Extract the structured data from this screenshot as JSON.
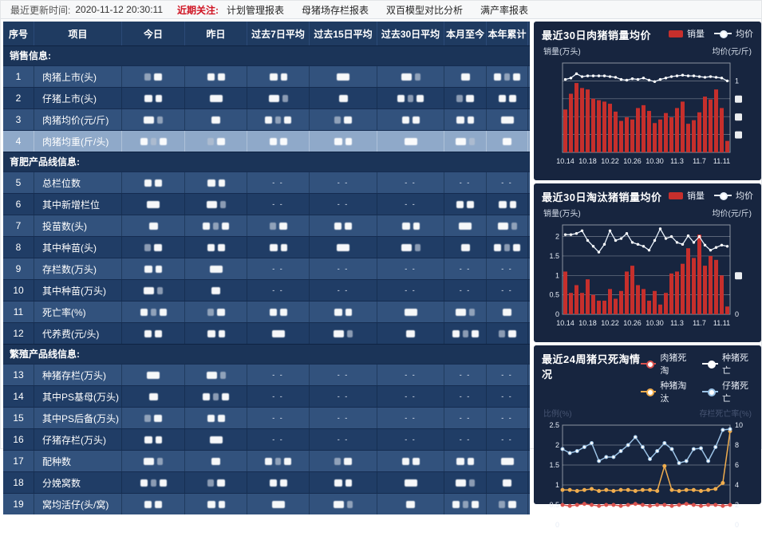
{
  "topbar": {
    "update_label": "最近更新时间:",
    "update_time": "2020-11-12 20:30:11",
    "focus_label": "近期关注:",
    "links": [
      "计划管理报表",
      "母猪场存栏报表",
      "双百模型对比分析",
      "满产率报表"
    ]
  },
  "colors": {
    "bar_red": "#c62f2c",
    "line_white": "#e8f1fb",
    "panel_bg": "#17253f",
    "header_navy": "#1f3b61",
    "row_light": "#32527d",
    "row_dark": "#203d66",
    "selected_row": "#8fa9c9",
    "focus_red": "#cf1322",
    "series_red": "#d9534f",
    "series_white": "#ffffff",
    "series_yellow": "#f0ad4e",
    "series_blue": "#9cc3e6"
  },
  "table": {
    "columns": [
      "序号",
      "项目",
      "今日",
      "昨日",
      "过去7日平均",
      "过去15日平均",
      "过去30日平均",
      "本月至今",
      "本年累计"
    ],
    "groups": [
      {
        "title": "销售信息:",
        "rows": [
          {
            "no": "1",
            "name": "肉猪上市(头)",
            "cells": [
              "R",
              "R",
              "R",
              "R",
              "R",
              "R",
              "R"
            ]
          },
          {
            "no": "2",
            "name": "仔猪上市(头)",
            "cells": [
              "R",
              "R",
              "R",
              "R",
              "R",
              "R",
              "R"
            ]
          },
          {
            "no": "3",
            "name": "肉猪均价(元/斤)",
            "cells": [
              "R",
              "R",
              "R",
              "R",
              "R",
              "R",
              "R"
            ]
          },
          {
            "no": "4",
            "name": "肉猪均重(斤/头)",
            "cells": [
              "R",
              "R",
              "R",
              "R",
              "R",
              "R",
              "R"
            ],
            "selected": true
          }
        ]
      },
      {
        "title": "育肥产品线信息:",
        "rows": [
          {
            "no": "5",
            "name": "总栏位数",
            "cells": [
              "R",
              "R",
              "--",
              "--",
              "--",
              "--",
              "--"
            ]
          },
          {
            "no": "6",
            "name": "其中新增栏位",
            "cells": [
              "R",
              "R",
              "--",
              "--",
              "--",
              "R",
              "R"
            ]
          },
          {
            "no": "7",
            "name": "投苗数(头)",
            "cells": [
              "R",
              "R",
              "R",
              "R",
              "R",
              "R",
              "R"
            ]
          },
          {
            "no": "8",
            "name": "其中种苗(头)",
            "cells": [
              "R",
              "R",
              "R",
              "R",
              "R",
              "R",
              "R"
            ]
          },
          {
            "no": "9",
            "name": "存栏数(万头)",
            "cells": [
              "R",
              "R",
              "--",
              "--",
              "--",
              "--",
              "--"
            ]
          },
          {
            "no": "10",
            "name": "其中种苗(万头)",
            "cells": [
              "R",
              "R",
              "--",
              "--",
              "--",
              "--",
              "--"
            ]
          },
          {
            "no": "11",
            "name": "死亡率(%)",
            "cells": [
              "R",
              "R",
              "R",
              "R",
              "R",
              "R",
              "R"
            ]
          },
          {
            "no": "12",
            "name": "代养费(元/头)",
            "cells": [
              "R",
              "R",
              "R",
              "R",
              "R",
              "R",
              "R"
            ]
          }
        ]
      },
      {
        "title": "繁殖产品线信息:",
        "rows": [
          {
            "no": "13",
            "name": "种猪存栏(万头)",
            "cells": [
              "R",
              "R",
              "--",
              "--",
              "--",
              "--",
              "--"
            ]
          },
          {
            "no": "14",
            "name": "其中PS基母(万头)",
            "cells": [
              "R",
              "R",
              "--",
              "--",
              "--",
              "--",
              "--"
            ]
          },
          {
            "no": "15",
            "name": "其中PS后备(万头)",
            "cells": [
              "R",
              "R",
              "--",
              "--",
              "--",
              "--",
              "--"
            ]
          },
          {
            "no": "16",
            "name": "仔猪存栏(万头)",
            "cells": [
              "R",
              "R",
              "--",
              "--",
              "--",
              "--",
              "--"
            ]
          },
          {
            "no": "17",
            "name": "配种数",
            "cells": [
              "R",
              "R",
              "R",
              "R",
              "R",
              "R",
              "R"
            ]
          },
          {
            "no": "18",
            "name": "分娩窝数",
            "cells": [
              "R",
              "R",
              "R",
              "R",
              "R",
              "R",
              "R"
            ]
          },
          {
            "no": "19",
            "name": "窝均活仔(头/窝)",
            "cells": [
              "R",
              "R",
              "R",
              "R",
              "R",
              "R",
              "R"
            ]
          }
        ]
      }
    ]
  },
  "chart_data": [
    {
      "type": "bar+line",
      "title": "最近30日肉猪销量均价",
      "legend": [
        {
          "label": "销量",
          "type": "bar",
          "color": "#c62f2c"
        },
        {
          "label": "均价",
          "type": "line",
          "color": "#e8f1fb"
        }
      ],
      "ylabel_left": "销量(万头)",
      "ylabel_right": "均价(元/斤)",
      "x_ticks": [
        "10.14",
        "10.18",
        "10.22",
        "10.26",
        "10.30",
        "11.3",
        "11.7",
        "11.11"
      ],
      "x_tick_positions": [
        0,
        4,
        8,
        12,
        16,
        20,
        24,
        28
      ],
      "ylim_left": [
        0,
        1.25
      ],
      "grid_values": [
        0.25,
        0.5,
        0.75,
        1.0
      ],
      "left_ticks": [],
      "right_ticks": [
        {
          "v": 1.0,
          "label": "1"
        },
        {
          "v": 0.75,
          "redacted": true
        },
        {
          "v": 0.5,
          "redacted": true
        },
        {
          "v": 0.25,
          "redacted": true
        }
      ],
      "bar_series": {
        "name": "销量",
        "values": [
          0.6,
          0.82,
          0.97,
          0.9,
          0.88,
          0.75,
          0.73,
          0.71,
          0.68,
          0.57,
          0.44,
          0.49,
          0.46,
          0.62,
          0.66,
          0.58,
          0.41,
          0.46,
          0.55,
          0.49,
          0.62,
          0.71,
          0.4,
          0.45,
          0.56,
          0.78,
          0.74,
          0.88,
          0.62,
          0.16
        ]
      },
      "line_series": {
        "name": "均价",
        "values": [
          1.02,
          1.04,
          1.1,
          1.06,
          1.07,
          1.07,
          1.07,
          1.07,
          1.06,
          1.05,
          1.02,
          1.01,
          1.03,
          1.02,
          1.04,
          1.01,
          0.99,
          1.02,
          1.04,
          1.06,
          1.07,
          1.08,
          1.07,
          1.07,
          1.06,
          1.05,
          1.06,
          1.05,
          1.04,
          1.0
        ]
      }
    },
    {
      "type": "bar+line",
      "title": "最近30日淘汰猪销量均价",
      "legend": [
        {
          "label": "销量",
          "type": "bar",
          "color": "#c62f2c"
        },
        {
          "label": "均价",
          "type": "line",
          "color": "#e8f1fb"
        }
      ],
      "ylabel_left": "销量(万头)",
      "ylabel_right": "均价(元/斤)",
      "x_ticks": [
        "10.14",
        "10.18",
        "10.22",
        "10.26",
        "10.30",
        "11.3",
        "11.7",
        "11.11"
      ],
      "x_tick_positions": [
        0,
        4,
        8,
        12,
        16,
        20,
        24,
        28
      ],
      "ylim_left": [
        0,
        2.3
      ],
      "grid_values": [
        0.5,
        1.0,
        1.5,
        2.0
      ],
      "left_ticks": [
        {
          "v": 0,
          "label": "0"
        },
        {
          "v": 0.5,
          "label": "0.5"
        },
        {
          "v": 1.0,
          "label": "1"
        },
        {
          "v": 1.5,
          "label": "1.5"
        },
        {
          "v": 2.0,
          "label": "2"
        }
      ],
      "right_ticks": [
        {
          "v": 0,
          "label": "0"
        },
        {
          "v": 1.0,
          "redacted": true
        }
      ],
      "bar_series": {
        "name": "销量",
        "values": [
          1.1,
          0.55,
          0.75,
          0.55,
          0.9,
          0.5,
          0.35,
          0.35,
          0.65,
          0.4,
          0.6,
          1.1,
          1.25,
          0.75,
          0.65,
          0.35,
          0.6,
          0.25,
          0.55,
          1.05,
          1.1,
          1.3,
          1.7,
          1.45,
          2.05,
          1.25,
          1.5,
          1.4,
          1.0,
          0.2
        ]
      },
      "line_series": {
        "name": "均价",
        "values": [
          2.05,
          2.05,
          2.08,
          2.15,
          1.9,
          1.75,
          1.6,
          1.8,
          2.15,
          1.9,
          1.95,
          2.08,
          1.85,
          1.8,
          1.75,
          1.65,
          1.9,
          2.2,
          1.95,
          2.0,
          1.85,
          1.8,
          2.02,
          1.85,
          2.0,
          1.78,
          1.65,
          1.72,
          1.78,
          1.75
        ]
      }
    },
    {
      "type": "line",
      "title": "最近24周猪只死淘情况",
      "legend": [
        {
          "label": "肉猪死淘",
          "type": "line",
          "color": "#d9534f"
        },
        {
          "label": "种猪死亡",
          "type": "line",
          "color": "#ffffff"
        },
        {
          "label": "种猪淘汰",
          "type": "line",
          "color": "#f0ad4e"
        },
        {
          "label": "仔猪死亡",
          "type": "line",
          "color": "#9cc3e6"
        }
      ],
      "ylabel_left": "比例(%)",
      "ylabel_right": "存栏死亡率(%)",
      "n_points": 24,
      "ylim_left": [
        0,
        2.5
      ],
      "ylim_right": [
        0,
        10
      ],
      "left_tick_labels": [
        "2.5",
        "2",
        "1.5",
        "1",
        "0.5",
        "0"
      ],
      "right_tick_labels": [
        "10",
        "8",
        "6",
        "4",
        "2",
        "0"
      ],
      "grid_values_left": [
        2.5,
        2.0,
        1.5,
        1.0,
        0.5,
        0
      ],
      "series": [
        {
          "name": "肉猪死淘",
          "axis": "right",
          "color": "#d9534f",
          "values": [
            2.0,
            1.9,
            2.0,
            2.1,
            2.0,
            1.9,
            2.0,
            2.0,
            1.9,
            2.0,
            2.1,
            2.0,
            1.9,
            2.0,
            2.0,
            1.9,
            2.0,
            2.1,
            2.0,
            1.9,
            2.0,
            2.0,
            1.9,
            2.0
          ]
        },
        {
          "name": "种猪死亡",
          "axis": "right",
          "color": "#ffffff",
          "values": [
            1.0,
            0.9,
            1.0,
            1.1,
            1.0,
            0.9,
            1.0,
            1.0,
            0.9,
            1.0,
            1.1,
            1.0,
            0.9,
            1.0,
            1.0,
            0.9,
            1.0,
            1.1,
            1.0,
            0.9,
            1.0,
            1.0,
            0.9,
            1.0
          ]
        },
        {
          "name": "种猪淘汰",
          "axis": "right",
          "color": "#f0ad4e",
          "values": [
            3.5,
            3.5,
            3.4,
            3.5,
            3.6,
            3.4,
            3.5,
            3.4,
            3.5,
            3.5,
            3.4,
            3.5,
            3.5,
            3.4,
            5.9,
            3.5,
            3.4,
            3.5,
            3.5,
            3.4,
            3.5,
            3.6,
            4.2,
            9.4
          ]
        },
        {
          "name": "仔猪死亡",
          "axis": "left",
          "color": "#9cc3e6",
          "values": [
            1.9,
            1.8,
            1.85,
            1.95,
            2.05,
            1.6,
            1.7,
            1.7,
            1.85,
            2.0,
            2.2,
            1.95,
            1.65,
            1.85,
            2.05,
            1.9,
            1.55,
            1.6,
            1.9,
            1.92,
            1.6,
            1.95,
            2.38,
            2.4
          ]
        }
      ]
    }
  ]
}
